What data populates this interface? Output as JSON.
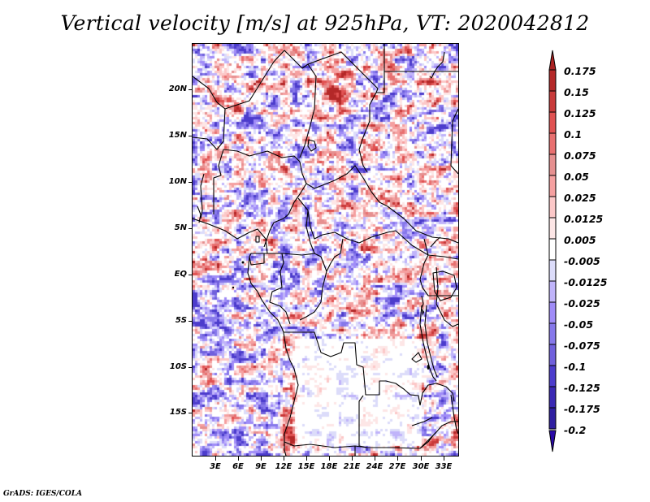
{
  "title": "Vertical velocity [m/s] at 925hPa, VT: 2020042812",
  "footer": "GrADS: IGES/COLA",
  "chart_data": {
    "type": "heatmap",
    "title": "Vertical velocity [m/s] at 925hPa, VT: 2020042812",
    "variable": "Vertical velocity",
    "units": "m/s",
    "level": "925hPa",
    "valid_time": "2020042812",
    "projection": "lat-lon",
    "lon_range": [
      0,
      35
    ],
    "lat_range": [
      -19,
      24.5
    ],
    "x_ticks": [
      {
        "value": 3,
        "label": "3E"
      },
      {
        "value": 6,
        "label": "6E"
      },
      {
        "value": 9,
        "label": "9E"
      },
      {
        "value": 12,
        "label": "12E"
      },
      {
        "value": 15,
        "label": "15E"
      },
      {
        "value": 18,
        "label": "18E"
      },
      {
        "value": 21,
        "label": "21E"
      },
      {
        "value": 24,
        "label": "24E"
      },
      {
        "value": 27,
        "label": "27E"
      },
      {
        "value": 30,
        "label": "30E"
      },
      {
        "value": 33,
        "label": "33E"
      }
    ],
    "y_ticks": [
      {
        "value": 20,
        "label": "20N"
      },
      {
        "value": 15,
        "label": "15N"
      },
      {
        "value": 10,
        "label": "10N"
      },
      {
        "value": 5,
        "label": "5N"
      },
      {
        "value": 0,
        "label": "EQ"
      },
      {
        "value": -5,
        "label": "5S"
      },
      {
        "value": -10,
        "label": "10S"
      },
      {
        "value": -15,
        "label": "15S"
      }
    ],
    "colorbar": {
      "orientation": "vertical",
      "placement": "right",
      "extend": "both",
      "levels": [
        {
          "label": "0.175",
          "color": "#b42828"
        },
        {
          "label": "0.15",
          "color": "#c83a3a"
        },
        {
          "label": "0.125",
          "color": "#e05252"
        },
        {
          "label": "0.1",
          "color": "#e87070"
        },
        {
          "label": "0.075",
          "color": "#e69090"
        },
        {
          "label": "0.05",
          "color": "#f5a0a0"
        },
        {
          "label": "0.025",
          "color": "#fcc8c8"
        },
        {
          "label": "0.0125",
          "color": "#fde6e6"
        },
        {
          "label": "0.005",
          "color": "#ffffff"
        },
        {
          "label": "-0.005",
          "color": "#dcdcfa"
        },
        {
          "label": "-0.0125",
          "color": "#c0b4fa"
        },
        {
          "label": "-0.025",
          "color": "#a08cf8"
        },
        {
          "label": "-0.05",
          "color": "#8678ea"
        },
        {
          "label": "-0.075",
          "color": "#7060dc"
        },
        {
          "label": "-0.1",
          "color": "#4c3ccc"
        },
        {
          "label": "-0.125",
          "color": "#3a28b4"
        },
        {
          "label": "-0.175",
          "color": "#2e1ea0"
        },
        {
          "label": "-0.2",
          "color": ""
        }
      ],
      "top_arrow_color": "#aa2222",
      "bottom_arrow_color": "#2a0aa8"
    },
    "pattern_notes": "Mostly weak noisy values (|w| < 0.05) with stronger positive (red) cells in N Chad/Libya and stronger negative (blue) streaks over ocean SW and NE Sudan; Angola interior near zero (white)."
  }
}
